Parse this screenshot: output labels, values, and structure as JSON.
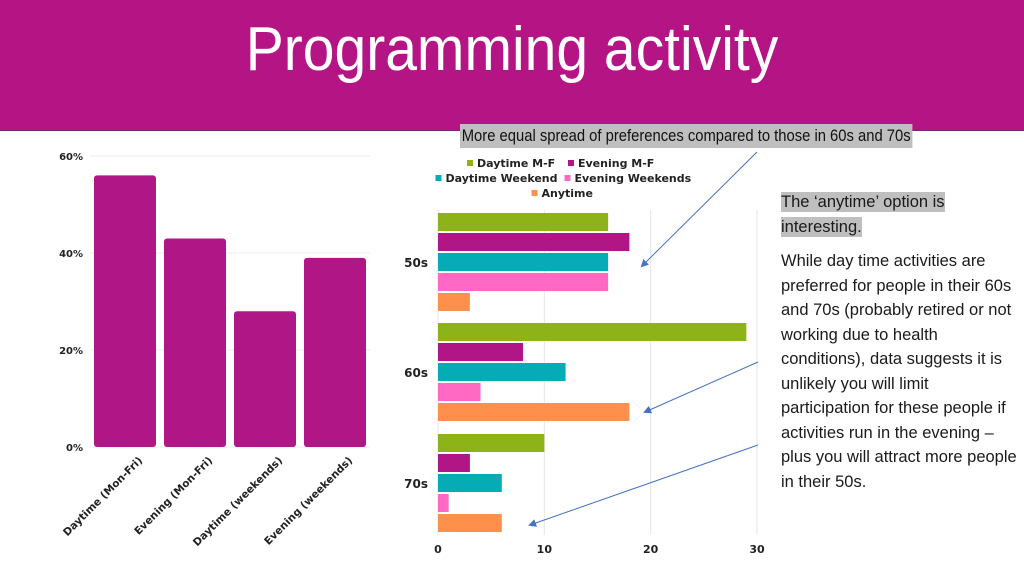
{
  "slide": {
    "title": "Programming activity",
    "callout_top": "More equal spread of preferences compared to those in 60s and 70s",
    "side_highlight": "The ‘anytime’ option is interesting.",
    "side_highlight_lines": [
      "The ‘anytime’ option is",
      "interesting."
    ],
    "side_body": "While day time activities are preferred for people in their 60s and 70s (probably retired or not working due to health conditions), data suggests it is unlikely you will limit participation for these people if activities run in the evening – plus you will attract more people in their 50s.",
    "colors": {
      "banner": "#B51485",
      "highlight": "#BFBFBF",
      "arrow": "#4472C4"
    }
  },
  "chart_data": [
    {
      "type": "bar",
      "orientation": "vertical",
      "title": "",
      "categories": [
        "Daytime (Mon-Fri)",
        "Evening (Mon-Fri)",
        "Daytime (weekends)",
        "Evening (weekends)"
      ],
      "values": [
        56,
        43,
        28,
        39
      ],
      "value_unit": "%",
      "yticks": [
        "0%",
        "20%",
        "40%",
        "60%"
      ],
      "ytick_values": [
        0,
        20,
        40,
        60
      ],
      "ylim": [
        0,
        60
      ],
      "xlabel": "",
      "ylabel": "",
      "grid": true,
      "color": "#B01685"
    },
    {
      "type": "bar",
      "orientation": "horizontal",
      "title": "",
      "categories": [
        "50s",
        "60s",
        "70s"
      ],
      "series": [
        {
          "name": "Daytime M-F",
          "color": "#8DB319",
          "values": [
            16,
            29,
            10
          ]
        },
        {
          "name": "Evening M-F",
          "color": "#B01685",
          "values": [
            18,
            8,
            3
          ]
        },
        {
          "name": "Daytime Weekend",
          "color": "#05ACB5",
          "values": [
            16,
            12,
            6
          ]
        },
        {
          "name": "Evening Weekends",
          "color": "#FF69C4",
          "values": [
            16,
            4,
            1
          ]
        },
        {
          "name": "Anytime",
          "color": "#FF904C",
          "values": [
            3,
            18,
            6
          ]
        }
      ],
      "xticks": [
        "0",
        "10",
        "20",
        "30"
      ],
      "xtick_values": [
        0,
        10,
        20,
        30
      ],
      "xlim": [
        0,
        30
      ],
      "legend_position": "top",
      "grid": true
    }
  ]
}
